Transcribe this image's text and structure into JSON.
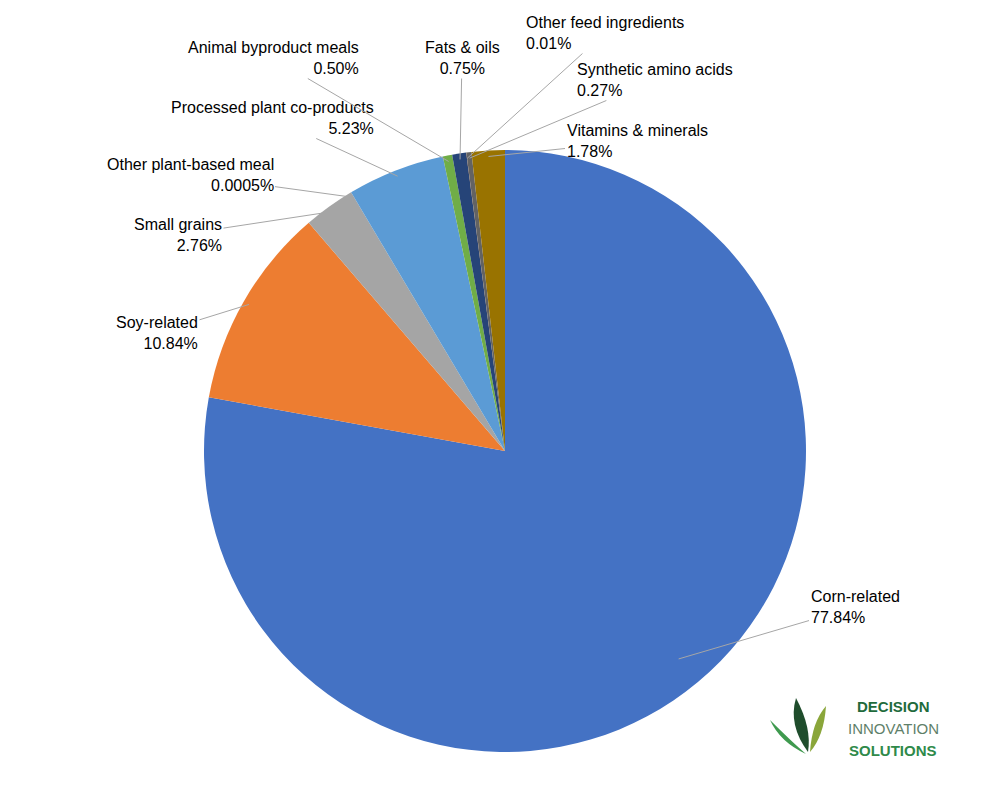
{
  "chart_data": {
    "type": "pie",
    "categories": [
      "Corn-related",
      "Soy-related",
      "Small grains",
      "Other plant-based meal",
      "Processed plant co-products",
      "Animal byproduct meals",
      "Fats & oils",
      "Other feed ingredients",
      "Synthetic amino acids",
      "Vitamins & minerals"
    ],
    "values": [
      77.84,
      10.84,
      2.76,
      0.0005,
      5.23,
      0.5,
      0.75,
      0.01,
      0.27,
      1.78
    ],
    "value_labels": [
      "77.84%",
      "10.84%",
      "2.76%",
      "0.0005%",
      "5.23%",
      "0.50%",
      "0.75%",
      "0.01%",
      "0.27%",
      "1.78%"
    ],
    "colors": [
      "#4472c4",
      "#ed7d31",
      "#a5a5a5",
      "#ffc000",
      "#5b9bd5",
      "#70ad47",
      "#264478",
      "#9e480e",
      "#636363",
      "#997300"
    ],
    "data_labels": true,
    "annotations": [
      "DECISION",
      "INNOVATION",
      "SOLUTIONS"
    ]
  }
}
